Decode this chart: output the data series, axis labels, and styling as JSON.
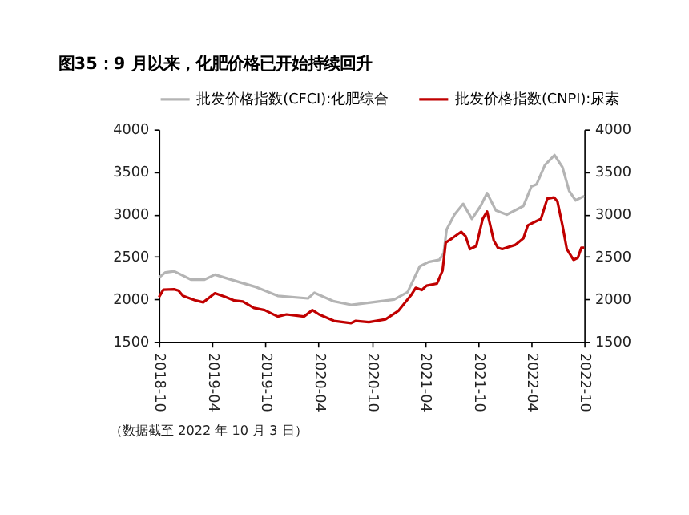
{
  "chart_data": {
    "type": "line",
    "title": "图35：9 月以来，化肥价格已开始持续回升",
    "annotations": [
      "（数据截至 2022 年 10 月 3 日）"
    ],
    "xlim": [
      "2018-10",
      "2022-10"
    ],
    "xticks": [
      "2018-10",
      "2019-04",
      "2019-10",
      "2020-04",
      "2020-10",
      "2021-04",
      "2021-10",
      "2022-04",
      "2022-10"
    ],
    "ylim": [
      1500,
      4000
    ],
    "yticks": [
      1500,
      2000,
      2500,
      3000,
      3500,
      4000
    ],
    "y2lim": [
      1500,
      4000
    ],
    "y2ticks": [
      1500,
      2000,
      2500,
      3000,
      3500,
      4000
    ],
    "grid": false,
    "legend": "top",
    "marker": "none",
    "line_style": "solid",
    "series": [
      {
        "name": "批发价格指数(CFCI):化肥综合",
        "color": "#b4b4b4",
        "x": [
          "2018-10-01",
          "2018-10-23",
          "2018-11-22",
          "2019-01-20",
          "2019-03-05",
          "2019-04-11",
          "2019-07-01",
          "2019-08-31",
          "2019-11-13",
          "2020-02-25",
          "2020-03-18",
          "2020-05-24",
          "2020-07-22",
          "2020-09-21",
          "2020-12-17",
          "2021-02-01",
          "2021-03-15",
          "2021-04-14",
          "2021-05-21",
          "2021-06-05",
          "2021-06-15",
          "2021-07-12",
          "2021-08-11",
          "2021-09-10",
          "2021-10-10",
          "2021-11-01",
          "2021-12-01",
          "2022-01-08",
          "2022-03-06",
          "2022-04-02",
          "2022-04-20",
          "2022-05-19",
          "2022-06-21",
          "2022-07-18",
          "2022-08-10",
          "2022-09-01",
          "2022-10-01"
        ],
        "values": [
          2255,
          2316,
          2330,
          2230,
          2230,
          2290,
          2205,
          2143,
          2040,
          2010,
          2077,
          1975,
          1934,
          1960,
          1997,
          2084,
          2388,
          2439,
          2464,
          2540,
          2820,
          2997,
          3124,
          2946,
          3099,
          3251,
          3048,
          2997,
          3099,
          3327,
          3353,
          3581,
          3698,
          3556,
          3277,
          3165,
          3216
        ]
      },
      {
        "name": "批发价格指数(CNPI):尿素",
        "color": "#c00000",
        "axis": "y2",
        "x": [
          "2018-10-01",
          "2018-10-16",
          "2018-11-22",
          "2018-12-07",
          "2018-12-22",
          "2019-02-05",
          "2019-03-02",
          "2019-04-11",
          "2019-05-18",
          "2019-06-17",
          "2019-07-16",
          "2019-08-23",
          "2019-09-29",
          "2019-11-13",
          "2019-12-13",
          "2020-02-11",
          "2020-03-11",
          "2020-04-03",
          "2020-05-24",
          "2020-07-22",
          "2020-08-07",
          "2020-09-21",
          "2020-11-17",
          "2021-01-01",
          "2021-02-15",
          "2021-03-01",
          "2021-03-22",
          "2021-04-07",
          "2021-05-13",
          "2021-06-01",
          "2021-06-12",
          "2021-07-04",
          "2021-08-04",
          "2021-08-19",
          "2021-09-03",
          "2021-09-25",
          "2021-10-17",
          "2021-11-01",
          "2021-11-24",
          "2021-12-08",
          "2021-12-23",
          "2022-02-07",
          "2022-03-06",
          "2022-03-21",
          "2022-04-20",
          "2022-05-05",
          "2022-05-27",
          "2022-06-19",
          "2022-07-01",
          "2022-07-18",
          "2022-08-02",
          "2022-08-25",
          "2022-09-09",
          "2022-09-21",
          "2022-10-01"
        ],
        "values": [
          2026,
          2112,
          2117,
          2102,
          2041,
          1985,
          1964,
          2071,
          2026,
          1985,
          1974,
          1898,
          1872,
          1796,
          1821,
          1796,
          1872,
          1821,
          1745,
          1719,
          1745,
          1730,
          1764,
          1865,
          2058,
          2134,
          2109,
          2160,
          2185,
          2337,
          2667,
          2718,
          2794,
          2744,
          2591,
          2627,
          2946,
          3033,
          2693,
          2607,
          2591,
          2642,
          2718,
          2871,
          2921,
          2946,
          3185,
          3200,
          3150,
          2871,
          2591,
          2464,
          2490,
          2607,
          2607
        ]
      }
    ]
  }
}
